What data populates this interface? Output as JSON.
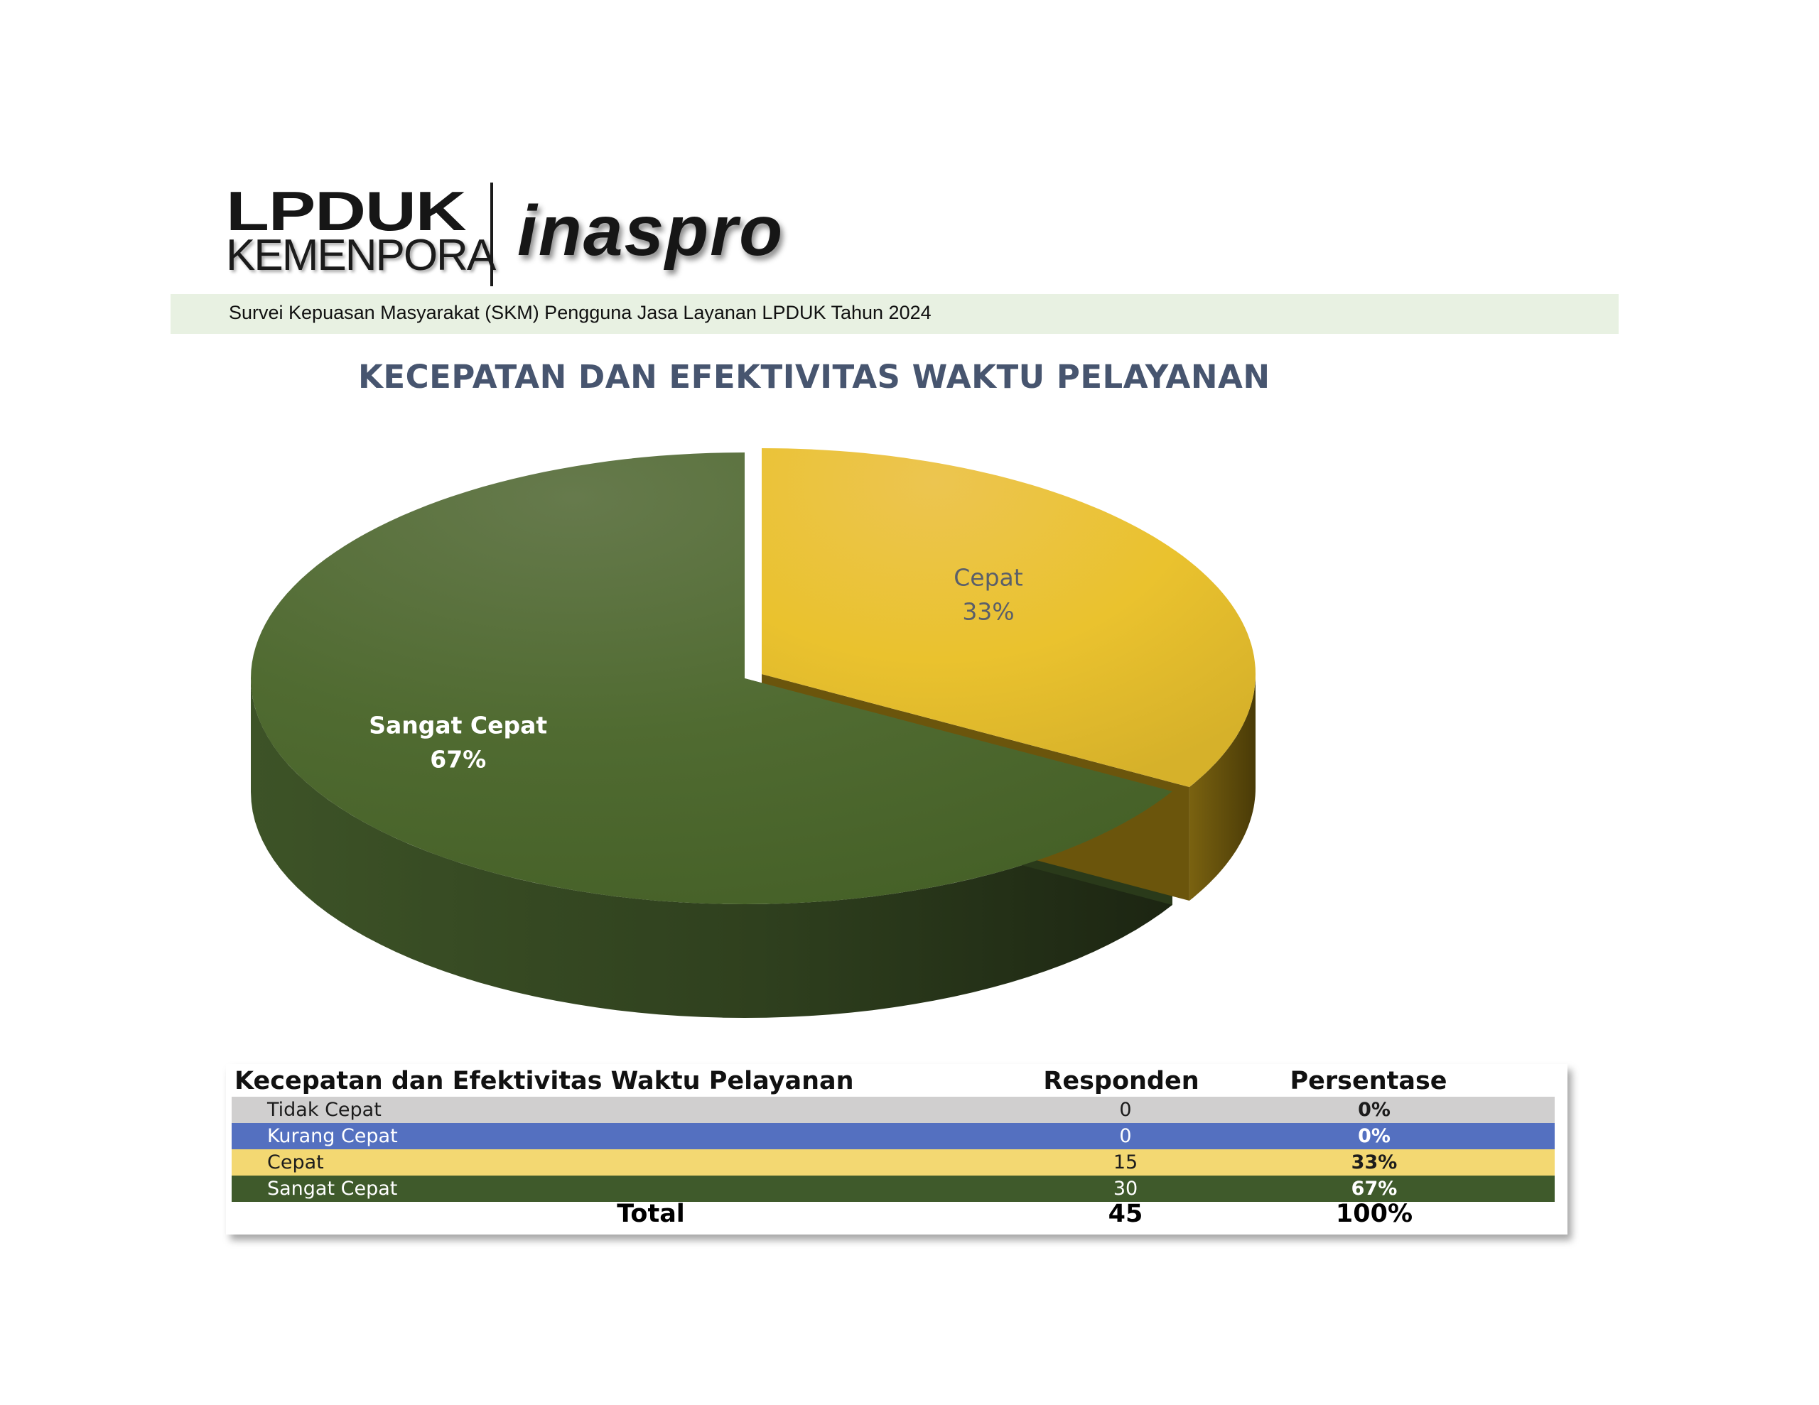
{
  "logo": {
    "lpduk": "LPDUK",
    "kemenpora": "KEMENPORA",
    "inaspro": "inaspro"
  },
  "header": {
    "survey_text": "Survei Kepuasan Masyarakat (SKM) Pengguna Jasa Layanan LPDUK Tahun 2024"
  },
  "chart_data": {
    "type": "pie",
    "title": "KECEPATAN DAN EFEKTIVITAS WAKTU PELAYANAN",
    "slices": [
      {
        "label": "Cepat",
        "value": 15,
        "percent": "33%",
        "color": "#e8c22e",
        "label_color": "#5a5f6a"
      },
      {
        "label": "Sangat Cepat",
        "value": 30,
        "percent": "67%",
        "color": "#4f6b32",
        "label_color": "#ffffff"
      }
    ],
    "legend": "none"
  },
  "table": {
    "headers": {
      "category": "Kecepatan dan Efektivitas Waktu Pelayanan",
      "respondents": "Responden",
      "percentage": "Persentase"
    },
    "rows": [
      {
        "label": "Tidak Cepat",
        "respondents": "0",
        "percentage": "0%",
        "bg": "#d0cfcf",
        "fg": "#1c1c1c"
      },
      {
        "label": "Kurang Cepat",
        "respondents": "0",
        "percentage": "0%",
        "bg": "#5470c0",
        "fg": "#ffffff"
      },
      {
        "label": "Cepat",
        "respondents": "15",
        "percentage": "33%",
        "bg": "#f3d872",
        "fg": "#1c1c1c"
      },
      {
        "label": "Sangat Cepat",
        "respondents": "30",
        "percentage": "67%",
        "bg": "#3f5a2b",
        "fg": "#ffffff"
      }
    ],
    "total": {
      "label": "Total",
      "respondents": "45",
      "percentage": "100%"
    }
  }
}
